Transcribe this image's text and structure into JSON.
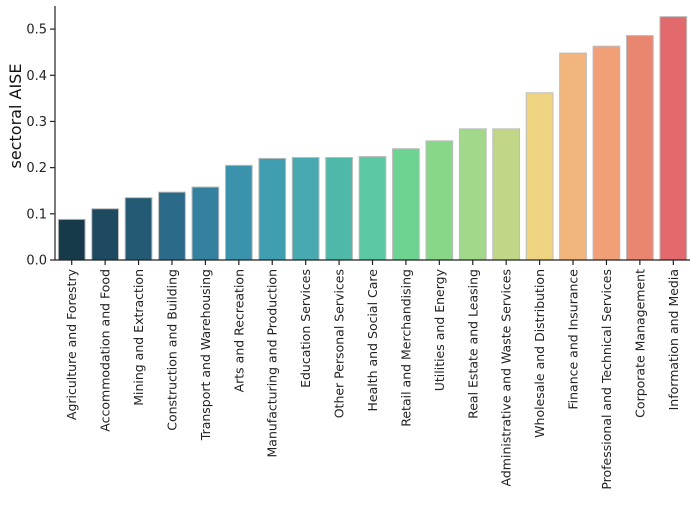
{
  "chart_data": {
    "type": "bar",
    "title": "",
    "xlabel": "",
    "ylabel": "sectoral AISE",
    "ylim": [
      0,
      0.55
    ],
    "yticks": [
      0.0,
      0.1,
      0.2,
      0.3,
      0.4,
      0.5
    ],
    "ytick_labels": [
      "0.0",
      "0.1",
      "0.2",
      "0.3",
      "0.4",
      "0.5"
    ],
    "grid": false,
    "categories": [
      "Agriculture and Forestry",
      "Accommodation and Food",
      "Mining and Extraction",
      "Construction and Building",
      "Transport and Warehousing",
      "Arts and Recreation",
      "Manufacturing and Production",
      "Education Services",
      "Other Personal Services",
      "Health and Social Care",
      "Retail and Merchandising",
      "Utilities and Energy",
      "Real Estate and Leasing",
      "Administrative and Waste Services",
      "Wholesale and Distribution",
      "Finance and Insurance",
      "Professional and Technical Services",
      "Corporate Management",
      "Information and Media"
    ],
    "values": [
      0.088,
      0.111,
      0.135,
      0.147,
      0.158,
      0.205,
      0.22,
      0.222,
      0.222,
      0.224,
      0.241,
      0.258,
      0.284,
      0.284,
      0.362,
      0.448,
      0.463,
      0.486,
      0.527
    ],
    "colors": [
      "#173a4b",
      "#1e4a61",
      "#245a74",
      "#2b6a89",
      "#33809f",
      "#3b92ac",
      "#3f9fb0",
      "#47aab0",
      "#50b8a8",
      "#5dc9a4",
      "#6dd391",
      "#88d688",
      "#a2d889",
      "#c2d687",
      "#eed380",
      "#f2b67c",
      "#f09f76",
      "#e98670",
      "#e26a6d"
    ]
  }
}
